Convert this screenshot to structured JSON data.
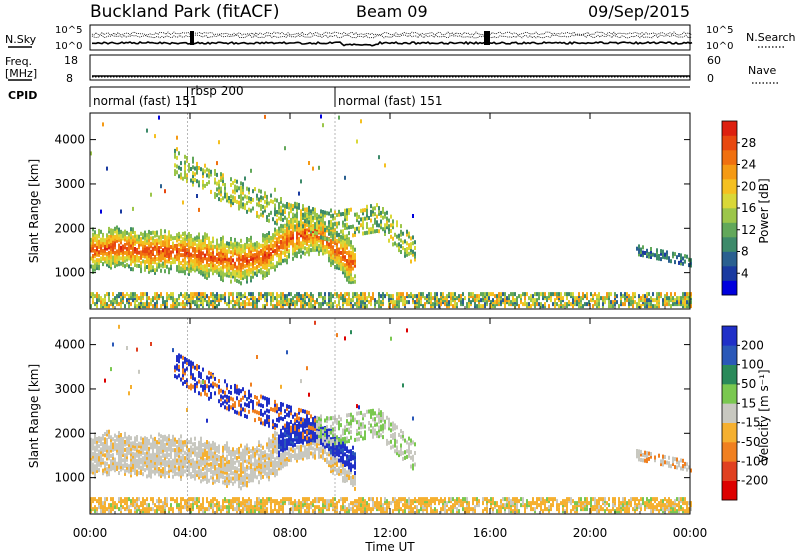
{
  "header": {
    "station": "Buckland Park (fitACF)",
    "beam": "Beam 09",
    "date": "09/Sep/2015"
  },
  "left_labels": {
    "nsky": "N.Sky",
    "freq_line1": "Freq.",
    "freq_line2": "[MHz]",
    "cpid": "CPID"
  },
  "right_labels": {
    "nsearch": "N.Search",
    "nave": "Nave"
  },
  "noise_axis": {
    "left_ticks": [
      "10^5",
      "10^0"
    ],
    "right_ticks": [
      "10^5",
      "10^0"
    ]
  },
  "freq_axis": {
    "left_ticks": [
      "18",
      "8"
    ],
    "right_ticks": [
      "60",
      "0"
    ]
  },
  "cpid_segments": [
    {
      "label": "normal (fast) 151",
      "start_hour": 0,
      "end_hour": 3.9
    },
    {
      "label": "rbsp 200",
      "start_hour": 3.9,
      "end_hour": 9.8
    },
    {
      "label": "normal (fast) 151",
      "start_hour": 9.8,
      "end_hour": 24
    }
  ],
  "chart_data": [
    {
      "type": "heatmap",
      "name": "power",
      "ylabel": "Slant Range [km]",
      "ylim": [
        180,
        4600
      ],
      "yticks": [
        "1000",
        "2000",
        "3000",
        "4000"
      ],
      "ytick_values": [
        1000,
        2000,
        3000,
        4000
      ],
      "colorbar": {
        "label": "Power [dB]",
        "ticks": [
          "4",
          "8",
          "12",
          "16",
          "20",
          "24",
          "28"
        ],
        "tick_values": [
          4,
          8,
          12,
          16,
          20,
          24,
          28
        ],
        "range": [
          0,
          32
        ],
        "colors": [
          "#0000dd",
          "#1a3aa0",
          "#2a6090",
          "#3d8a6a",
          "#62a85a",
          "#9cc64a",
          "#d9d838",
          "#f5c020",
          "#f59a14",
          "#f07010",
          "#e84810",
          "#dd2010"
        ]
      },
      "features": [
        {
          "label": "main band",
          "path": [
            [
              0,
              1450
            ],
            [
              1,
              1550
            ],
            [
              2,
              1450
            ],
            [
              3,
              1450
            ],
            [
              4,
              1400
            ],
            [
              5,
              1300
            ],
            [
              6,
              1200
            ],
            [
              7,
              1350
            ],
            [
              8,
              1750
            ],
            [
              9,
              1900
            ],
            [
              10,
              1400
            ],
            [
              10.6,
              1100
            ]
          ],
          "power_db": 26
        },
        {
          "label": "upper band",
          "path": [
            [
              3.3,
              3500
            ],
            [
              4.5,
              3100
            ],
            [
              5.5,
              2800
            ],
            [
              7,
              2450
            ],
            [
              8,
              2250
            ],
            [
              9.5,
              2000
            ],
            [
              11.5,
              2200
            ],
            [
              13,
              1400
            ]
          ],
          "power_db": 10
        }
      ]
    },
    {
      "type": "heatmap",
      "name": "velocity",
      "ylabel": "Slant Range [km]",
      "ylim": [
        180,
        4600
      ],
      "yticks": [
        "1000",
        "2000",
        "3000",
        "4000"
      ],
      "ytick_values": [
        1000,
        2000,
        3000,
        4000
      ],
      "colorbar": {
        "label": "Velocity [m s⁻¹]",
        "ticks": [
          "200",
          "100",
          "50",
          "15",
          "-15",
          "-50",
          "-100",
          "-200"
        ],
        "colors": [
          "#2030c8",
          "#2a58b8",
          "#2a8a5a",
          "#7ac850",
          "#c8c8c0",
          "#f5b030",
          "#f08020",
          "#e04020",
          "#dd0000"
        ]
      }
    }
  ],
  "x_axis": {
    "label": "Time UT",
    "ticks": [
      "00:00",
      "04:00",
      "08:00",
      "12:00",
      "16:00",
      "20:00",
      "00:00"
    ],
    "tick_hours": [
      0,
      4,
      8,
      12,
      16,
      20,
      24
    ]
  }
}
